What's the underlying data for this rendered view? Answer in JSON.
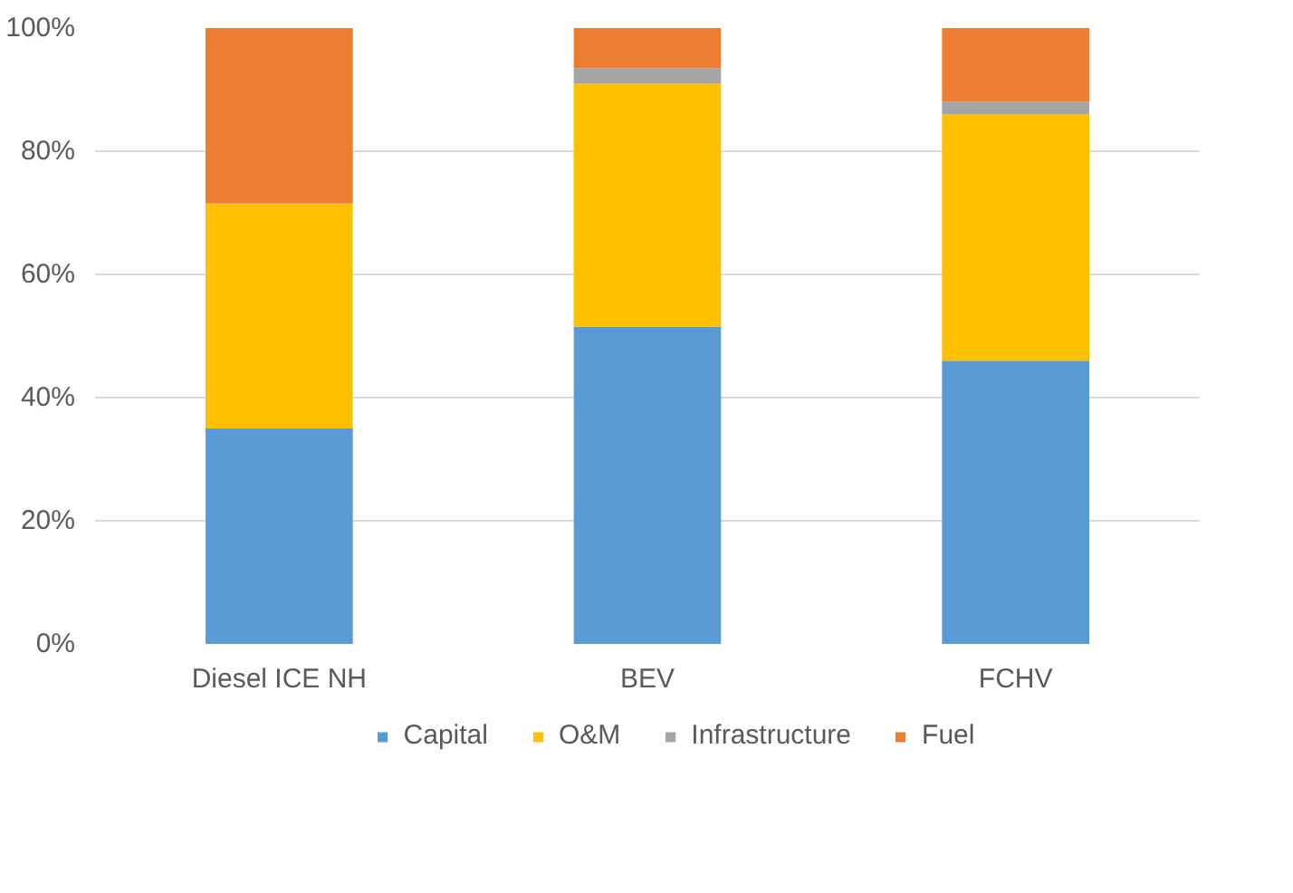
{
  "chart_data": {
    "type": "bar",
    "stacked": true,
    "categories": [
      "Diesel ICE NH",
      "BEV",
      "FCHV"
    ],
    "series": [
      {
        "name": "Capital",
        "color": "#5b9bd5",
        "values": [
          35,
          51.5,
          46
        ]
      },
      {
        "name": "O&M",
        "color": "#ffc000",
        "values": [
          36.5,
          39.5,
          40
        ]
      },
      {
        "name": "Infrastructure",
        "color": "#a5a5a5",
        "values": [
          0,
          2.5,
          2
        ]
      },
      {
        "name": "Fuel",
        "color": "#ed7d31",
        "values": [
          28.5,
          6.5,
          12
        ]
      }
    ],
    "ylim": [
      0,
      100
    ],
    "yticks": [
      {
        "value": 0,
        "label": "0%"
      },
      {
        "value": 20,
        "label": "20%"
      },
      {
        "value": 40,
        "label": "40%"
      },
      {
        "value": 60,
        "label": "60%"
      },
      {
        "value": 80,
        "label": "80%"
      },
      {
        "value": 100,
        "label": "100%"
      }
    ],
    "grid": "y",
    "legend": "bottom"
  }
}
